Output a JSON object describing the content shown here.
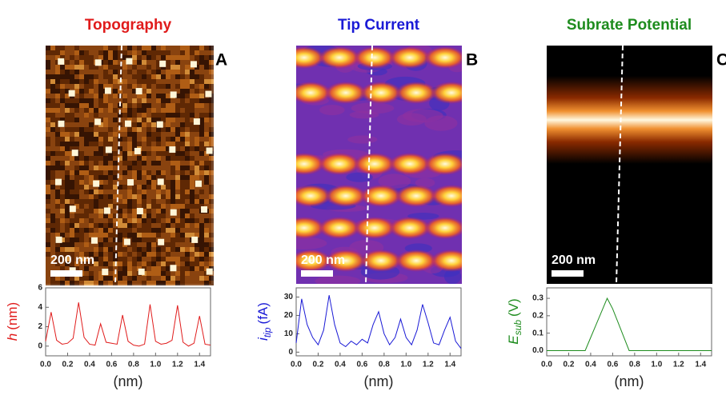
{
  "chart_data": [
    {
      "type": "line",
      "title": "Topography",
      "panel": "A",
      "scalebar": "200 nm",
      "color": "#e01b1b",
      "ylabel_symbol": "h",
      "ylabel_unit": "(nm)",
      "xlabel": "(nm)",
      "x": [
        0,
        0.05,
        0.1,
        0.15,
        0.2,
        0.25,
        0.3,
        0.35,
        0.4,
        0.45,
        0.5,
        0.55,
        0.6,
        0.65,
        0.7,
        0.75,
        0.8,
        0.85,
        0.9,
        0.95,
        1.0,
        1.05,
        1.1,
        1.15,
        1.2,
        1.25,
        1.3,
        1.35,
        1.4,
        1.45,
        1.5
      ],
      "values": [
        0.5,
        3.5,
        0.6,
        0.2,
        0.3,
        0.8,
        4.5,
        0.9,
        0.2,
        0.1,
        2.3,
        0.4,
        0.3,
        0.2,
        3.2,
        0.5,
        0.1,
        0.0,
        0.2,
        4.3,
        0.5,
        0.2,
        0.3,
        0.6,
        4.2,
        0.4,
        0.0,
        0.3,
        3.1,
        0.2,
        0.1
      ],
      "xlim": [
        0,
        1.5
      ],
      "ylim": [
        -1,
        6
      ],
      "xticks": [
        {
          "value": 0,
          "label": "0.0"
        },
        {
          "value": 0.2,
          "label": "0.2"
        },
        {
          "value": 0.4,
          "label": "0.4"
        },
        {
          "value": 0.6,
          "label": "0.6"
        },
        {
          "value": 0.8,
          "label": "0.8"
        },
        {
          "value": 1,
          "label": "1.0"
        },
        {
          "value": 1.2,
          "label": "1.2"
        },
        {
          "value": 1.4,
          "label": "1.4"
        }
      ],
      "yticks": [
        0,
        2,
        4,
        6
      ]
    },
    {
      "type": "line",
      "title": "Tip Current",
      "panel": "B",
      "scalebar": "200 nm",
      "color": "#1a1ad6",
      "ylabel_symbol": "i",
      "ylabel_subscript": "tip",
      "ylabel_unit": "(fA)",
      "xlabel": "(nm)",
      "x": [
        0,
        0.05,
        0.1,
        0.15,
        0.2,
        0.25,
        0.3,
        0.35,
        0.4,
        0.45,
        0.5,
        0.55,
        0.6,
        0.65,
        0.7,
        0.75,
        0.8,
        0.85,
        0.9,
        0.95,
        1.0,
        1.05,
        1.1,
        1.15,
        1.2,
        1.25,
        1.3,
        1.35,
        1.4,
        1.45,
        1.5
      ],
      "values": [
        5,
        29,
        15,
        8,
        4,
        12,
        31,
        15,
        5,
        3,
        6,
        4,
        7,
        5,
        15,
        22,
        10,
        4,
        8,
        18,
        8,
        4,
        12,
        26,
        16,
        5,
        4,
        12,
        19,
        6,
        2
      ],
      "xlim": [
        0,
        1.5
      ],
      "ylim": [
        -2,
        35
      ],
      "xticks": [
        {
          "value": 0,
          "label": "0.0"
        },
        {
          "value": 0.2,
          "label": "0.2"
        },
        {
          "value": 0.4,
          "label": "0.4"
        },
        {
          "value": 0.6,
          "label": "0.6"
        },
        {
          "value": 0.8,
          "label": "0.8"
        },
        {
          "value": 1,
          "label": "1.0"
        },
        {
          "value": 1.2,
          "label": "1.2"
        },
        {
          "value": 1.4,
          "label": "1.4"
        }
      ],
      "yticks": [
        0,
        10,
        20,
        30
      ]
    },
    {
      "type": "line",
      "title": "Subrate Potential",
      "panel": "C",
      "scalebar": "200 nm",
      "color": "#1e8c1e",
      "ylabel_symbol": "E",
      "ylabel_subscript": "sub",
      "ylabel_unit": "(V)",
      "xlabel": "(nm)",
      "x": [
        0,
        0.05,
        0.1,
        0.15,
        0.2,
        0.25,
        0.3,
        0.35,
        0.4,
        0.45,
        0.5,
        0.55,
        0.6,
        0.65,
        0.7,
        0.75,
        0.8,
        0.85,
        0.9,
        0.95,
        1.0,
        1.05,
        1.1,
        1.15,
        1.2,
        1.25,
        1.3,
        1.35,
        1.4,
        1.45,
        1.5
      ],
      "values": [
        0,
        0,
        0,
        0,
        0,
        0,
        0,
        0,
        0.075,
        0.15,
        0.225,
        0.3,
        0.24,
        0.16,
        0.08,
        0,
        0,
        0,
        0,
        0,
        0,
        0,
        0,
        0,
        0,
        0,
        0,
        0,
        0,
        0,
        0
      ],
      "xlim": [
        0,
        1.5
      ],
      "ylim": [
        -0.03,
        0.36
      ],
      "xticks": [
        {
          "value": 0,
          "label": "0.0"
        },
        {
          "value": 0.2,
          "label": "0.2"
        },
        {
          "value": 0.4,
          "label": "0.4"
        },
        {
          "value": 0.6,
          "label": "0.6"
        },
        {
          "value": 0.8,
          "label": "0.8"
        },
        {
          "value": 1,
          "label": "1.0"
        },
        {
          "value": 1.2,
          "label": "1.2"
        },
        {
          "value": 1.4,
          "label": "1.4"
        }
      ],
      "yticks": [
        {
          "value": 0,
          "label": "0.0"
        },
        {
          "value": 0.1,
          "label": "0.1"
        },
        {
          "value": 0.2,
          "label": "0.2"
        },
        {
          "value": 0.3,
          "label": "0.3"
        }
      ]
    }
  ]
}
